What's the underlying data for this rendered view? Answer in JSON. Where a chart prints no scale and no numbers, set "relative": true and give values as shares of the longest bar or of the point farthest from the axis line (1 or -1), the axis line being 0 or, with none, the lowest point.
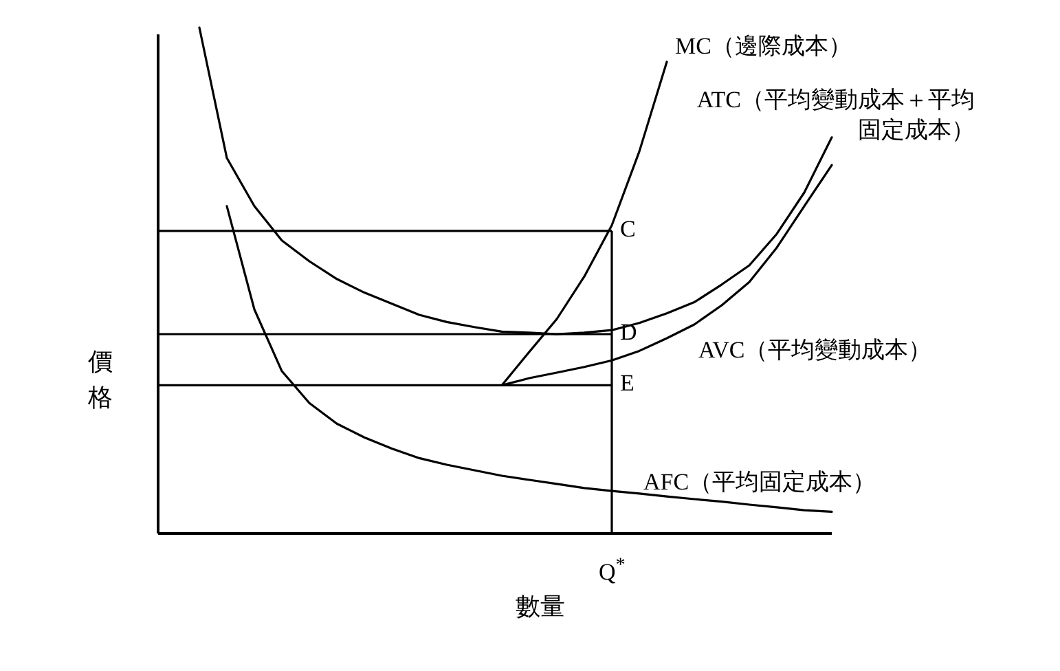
{
  "chart_data": {
    "type": "line",
    "relative": true,
    "xlabel": "數量",
    "ylabel": "價格",
    "marker": "none",
    "line_style": "solid",
    "tick_labels": false,
    "categories": [
      null,
      null,
      null,
      null,
      null,
      null,
      null,
      null,
      null,
      null,
      null,
      null,
      null,
      null,
      null,
      null,
      null,
      null,
      null,
      null,
      null,
      null,
      null,
      null
    ],
    "series": [
      {
        "name": "ATC（平均變動成本＋平均固定成本）",
        "color": "#000000",
        "values": [
          1.0,
          0.742,
          0.647,
          0.579,
          0.538,
          0.503,
          0.476,
          0.454,
          0.432,
          0.418,
          0.408,
          0.399,
          0.397,
          0.394,
          0.397,
          0.402,
          0.416,
          0.435,
          0.457,
          0.492,
          0.53,
          0.592,
          0.674,
          0.783
        ]
      },
      {
        "name": "MC（邊際成本）",
        "color": "#000000",
        "values": [
          null,
          null,
          null,
          null,
          null,
          null,
          null,
          null,
          null,
          null,
          null,
          0.293,
          0.359,
          0.424,
          0.508,
          0.609,
          0.755,
          0.932,
          null,
          null,
          null,
          null,
          null,
          null
        ]
      },
      {
        "name": "AVC（平均變動成本）",
        "color": "#000000",
        "values": [
          null,
          null,
          null,
          null,
          null,
          null,
          null,
          null,
          null,
          null,
          null,
          0.293,
          0.307,
          0.318,
          0.329,
          0.342,
          0.361,
          0.386,
          0.413,
          0.451,
          0.497,
          0.565,
          0.647,
          0.728
        ]
      },
      {
        "name": "AFC（平均固定成本）",
        "color": "#000000",
        "values": [
          null,
          0.647,
          0.443,
          0.321,
          0.258,
          0.217,
          0.19,
          0.168,
          0.149,
          0.136,
          0.125,
          0.114,
          0.106,
          0.098,
          0.09,
          0.084,
          0.079,
          0.073,
          0.068,
          0.063,
          0.057,
          0.052,
          0.046,
          0.043
        ]
      }
    ],
    "ref_lines": [
      {
        "axis": "y",
        "value": 0.598,
        "label": "C",
        "color": "#000000"
      },
      {
        "axis": "y",
        "value": 0.394,
        "label": "D",
        "color": "#000000"
      },
      {
        "axis": "y",
        "value": 0.293,
        "label": "E",
        "color": "#000000"
      }
    ],
    "annotations": [
      "Q$^{*}$"
    ]
  }
}
